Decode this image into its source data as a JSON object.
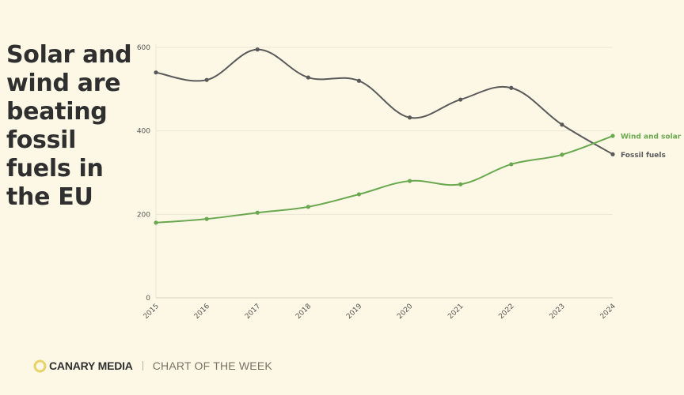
{
  "headline": "Solar and wind are beating fossil fuels in the EU",
  "footer": {
    "brand": "CANARY MEDIA",
    "tagline": "CHART OF THE WEEK",
    "logo_icon": "canary-dot-icon",
    "logo_color": "#e8d36a"
  },
  "chart_data": {
    "type": "line",
    "x": [
      "2015",
      "2016",
      "2017",
      "2018",
      "2019",
      "2020",
      "2021",
      "2022",
      "2023",
      "2024"
    ],
    "series": [
      {
        "name": "Fossil fuels",
        "color": "#5a5a5a",
        "values": [
          540,
          522,
          595,
          528,
          520,
          432,
          475,
          503,
          415,
          344
        ]
      },
      {
        "name": "Wind and solar",
        "color": "#6aa84f",
        "values": [
          180,
          189,
          204,
          218,
          248,
          280,
          272,
          320,
          343,
          388
        ]
      }
    ],
    "yticks": [
      0,
      200,
      400,
      600
    ],
    "ylim": [
      0,
      600
    ],
    "title": "",
    "xlabel": "",
    "ylabel": "",
    "grid": true,
    "legend": "direct labels at line ends"
  }
}
